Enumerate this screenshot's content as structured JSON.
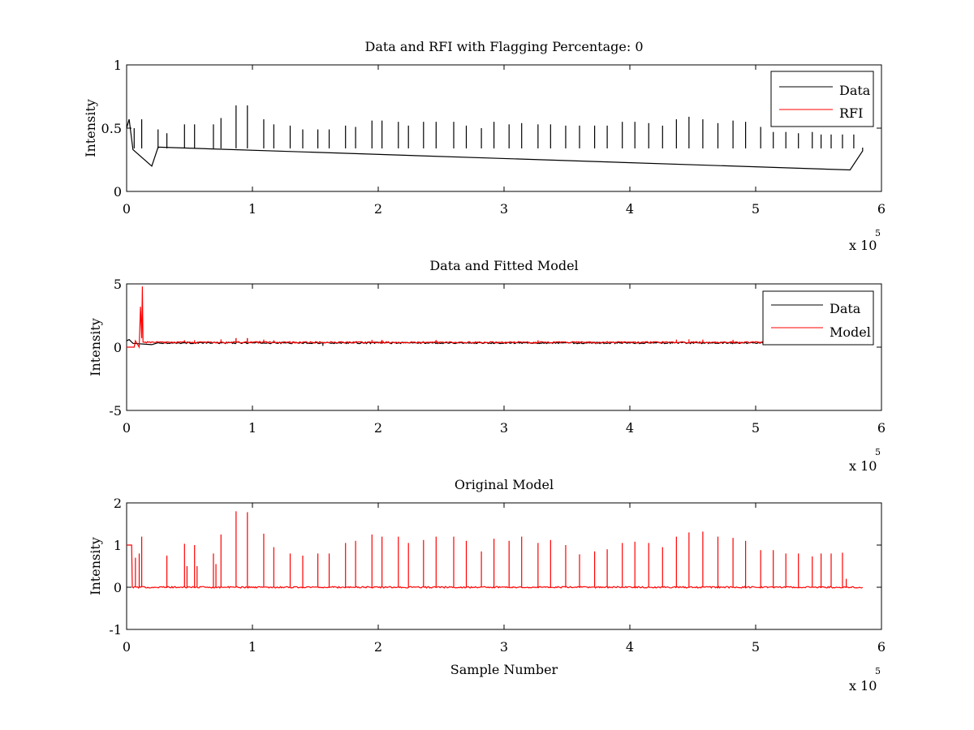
{
  "figure": {
    "background": "#ffffff"
  },
  "chart_data": [
    {
      "type": "line",
      "title": "Data and RFI with Flagging Percentage: 0",
      "xlabel": "",
      "ylabel": "Intensity",
      "xlim": [
        0,
        6
      ],
      "ylim": [
        0,
        1
      ],
      "x_ticks": [
        "0",
        "1",
        "2",
        "3",
        "4",
        "5",
        "6"
      ],
      "y_ticks": [
        "0",
        "0.5",
        "1"
      ],
      "x_multiplier": "x 10",
      "x_exponent": "5",
      "legend": {
        "position": "top-right",
        "entries": [
          "Data",
          "RFI"
        ]
      },
      "series": [
        {
          "name": "Data",
          "color": "#000000",
          "baseline": 0.34,
          "x_end": 5.85,
          "description_points": [
            [
              0.0,
              0.5
            ],
            [
              0.02,
              0.57
            ],
            [
              0.05,
              0.33
            ],
            [
              0.2,
              0.2
            ],
            [
              0.25,
              0.35
            ],
            [
              5.75,
              0.17
            ],
            [
              5.85,
              0.32
            ]
          ],
          "spikes": [
            [
              0.06,
              0.5
            ],
            [
              0.12,
              0.57
            ],
            [
              0.25,
              0.49
            ],
            [
              0.32,
              0.46
            ],
            [
              0.46,
              0.53
            ],
            [
              0.54,
              0.53
            ],
            [
              0.69,
              0.53
            ],
            [
              0.75,
              0.58
            ],
            [
              0.87,
              0.68
            ],
            [
              0.96,
              0.68
            ],
            [
              1.09,
              0.57
            ],
            [
              1.17,
              0.53
            ],
            [
              1.3,
              0.52
            ],
            [
              1.4,
              0.49
            ],
            [
              1.52,
              0.49
            ],
            [
              1.61,
              0.49
            ],
            [
              1.74,
              0.52
            ],
            [
              1.82,
              0.51
            ],
            [
              1.95,
              0.56
            ],
            [
              2.03,
              0.56
            ],
            [
              2.16,
              0.55
            ],
            [
              2.24,
              0.52
            ],
            [
              2.36,
              0.55
            ],
            [
              2.46,
              0.55
            ],
            [
              2.6,
              0.55
            ],
            [
              2.7,
              0.52
            ],
            [
              2.82,
              0.5
            ],
            [
              2.92,
              0.55
            ],
            [
              3.04,
              0.53
            ],
            [
              3.14,
              0.54
            ],
            [
              3.27,
              0.53
            ],
            [
              3.37,
              0.53
            ],
            [
              3.49,
              0.52
            ],
            [
              3.6,
              0.52
            ],
            [
              3.72,
              0.52
            ],
            [
              3.82,
              0.52
            ],
            [
              3.94,
              0.55
            ],
            [
              4.04,
              0.55
            ],
            [
              4.15,
              0.54
            ],
            [
              4.26,
              0.52
            ],
            [
              4.37,
              0.57
            ],
            [
              4.47,
              0.59
            ],
            [
              4.58,
              0.57
            ],
            [
              4.7,
              0.54
            ],
            [
              4.82,
              0.56
            ],
            [
              4.92,
              0.55
            ],
            [
              5.04,
              0.51
            ],
            [
              5.14,
              0.47
            ],
            [
              5.24,
              0.47
            ],
            [
              5.34,
              0.46
            ],
            [
              5.45,
              0.47
            ],
            [
              5.52,
              0.45
            ],
            [
              5.6,
              0.45
            ],
            [
              5.69,
              0.45
            ],
            [
              5.78,
              0.45
            ]
          ]
        },
        {
          "name": "RFI",
          "color": "#ff0000",
          "points": []
        }
      ]
    },
    {
      "type": "line",
      "title": "Data and Fitted Model",
      "xlabel": "",
      "ylabel": "Intensity",
      "xlim": [
        0,
        6
      ],
      "ylim": [
        -5,
        5
      ],
      "x_ticks": [
        "0",
        "1",
        "2",
        "3",
        "4",
        "5",
        "6"
      ],
      "y_ticks": [
        "-5",
        "0",
        "5"
      ],
      "x_multiplier": "x 10",
      "x_exponent": "5",
      "legend": {
        "position": "top-right",
        "entries": [
          "Data",
          "Model"
        ]
      },
      "series": [
        {
          "name": "Data",
          "color": "#000000",
          "baseline": 0.34,
          "x_end": 5.85,
          "description_points": [
            [
              0.0,
              0.5
            ],
            [
              0.02,
              0.6
            ],
            [
              0.05,
              0.3
            ],
            [
              0.2,
              0.2
            ],
            [
              0.25,
              0.35
            ]
          ],
          "spikes": [
            [
              0.87,
              0.68
            ],
            [
              0.96,
              0.68
            ],
            [
              1.56,
              0.1
            ]
          ]
        },
        {
          "name": "Model",
          "color": "#ff0000",
          "baseline": 0.38,
          "x_end": 5.85,
          "description_points": [
            [
              0.0,
              0.0
            ],
            [
              0.06,
              0.0
            ],
            [
              0.07,
              0.5
            ],
            [
              0.1,
              0.0
            ],
            [
              0.11,
              3.2
            ],
            [
              0.12,
              0.7
            ],
            [
              0.125,
              4.8
            ],
            [
              0.13,
              0.4
            ],
            [
              0.15,
              0.38
            ]
          ],
          "spikes": [
            [
              0.46,
              0.55
            ],
            [
              0.54,
              0.55
            ],
            [
              0.75,
              0.62
            ],
            [
              0.87,
              0.72
            ],
            [
              0.96,
              0.72
            ],
            [
              1.09,
              0.6
            ],
            [
              1.17,
              0.55
            ],
            [
              1.95,
              0.58
            ],
            [
              2.03,
              0.58
            ],
            [
              2.46,
              0.57
            ],
            [
              3.27,
              0.55
            ],
            [
              4.37,
              0.6
            ],
            [
              4.47,
              0.62
            ],
            [
              4.58,
              0.6
            ],
            [
              4.82,
              0.58
            ]
          ]
        }
      ]
    },
    {
      "type": "line",
      "title": "Original Model",
      "xlabel": "Sample Number",
      "ylabel": "Intensity",
      "xlim": [
        0,
        6
      ],
      "ylim": [
        -1,
        2
      ],
      "x_ticks": [
        "0",
        "1",
        "2",
        "3",
        "4",
        "5",
        "6"
      ],
      "y_ticks": [
        "-1",
        "0",
        "1",
        "2"
      ],
      "x_multiplier": "x 10",
      "x_exponent": "5",
      "legend": null,
      "series": [
        {
          "name": "",
          "color": "#ff0000",
          "baseline": 0.0,
          "x_end": 5.85,
          "description_points": [
            [
              0.0,
              1.0
            ],
            [
              0.04,
              1.0
            ],
            [
              0.045,
              0.0
            ]
          ],
          "spikes": [
            [
              0.07,
              0.7
            ],
            [
              0.1,
              0.8
            ],
            [
              0.12,
              1.2
            ],
            [
              0.32,
              0.75
            ],
            [
              0.46,
              1.03
            ],
            [
              0.48,
              0.5
            ],
            [
              0.54,
              1.0
            ],
            [
              0.56,
              0.5
            ],
            [
              0.69,
              0.8
            ],
            [
              0.71,
              0.55
            ],
            [
              0.75,
              1.25
            ],
            [
              0.87,
              1.8
            ],
            [
              0.96,
              1.78
            ],
            [
              1.09,
              1.27
            ],
            [
              1.17,
              0.95
            ],
            [
              1.3,
              0.8
            ],
            [
              1.4,
              0.75
            ],
            [
              1.52,
              0.8
            ],
            [
              1.61,
              0.8
            ],
            [
              1.74,
              1.05
            ],
            [
              1.82,
              1.1
            ],
            [
              1.95,
              1.25
            ],
            [
              2.03,
              1.2
            ],
            [
              2.16,
              1.2
            ],
            [
              2.24,
              1.05
            ],
            [
              2.36,
              1.12
            ],
            [
              2.46,
              1.2
            ],
            [
              2.6,
              1.2
            ],
            [
              2.7,
              1.1
            ],
            [
              2.82,
              0.85
            ],
            [
              2.92,
              1.15
            ],
            [
              3.04,
              1.1
            ],
            [
              3.14,
              1.2
            ],
            [
              3.27,
              1.05
            ],
            [
              3.37,
              1.12
            ],
            [
              3.49,
              1.0
            ],
            [
              3.6,
              0.78
            ],
            [
              3.72,
              0.85
            ],
            [
              3.82,
              0.9
            ],
            [
              3.94,
              1.05
            ],
            [
              4.04,
              1.08
            ],
            [
              4.15,
              1.05
            ],
            [
              4.26,
              0.95
            ],
            [
              4.37,
              1.2
            ],
            [
              4.47,
              1.3
            ],
            [
              4.58,
              1.32
            ],
            [
              4.7,
              1.2
            ],
            [
              4.82,
              1.17
            ],
            [
              4.92,
              1.1
            ],
            [
              5.04,
              0.88
            ],
            [
              5.14,
              0.88
            ],
            [
              5.24,
              0.8
            ],
            [
              5.34,
              0.8
            ],
            [
              5.45,
              0.73
            ],
            [
              5.52,
              0.8
            ],
            [
              5.6,
              0.8
            ],
            [
              5.69,
              0.82
            ],
            [
              5.72,
              0.2
            ]
          ]
        }
      ]
    }
  ]
}
